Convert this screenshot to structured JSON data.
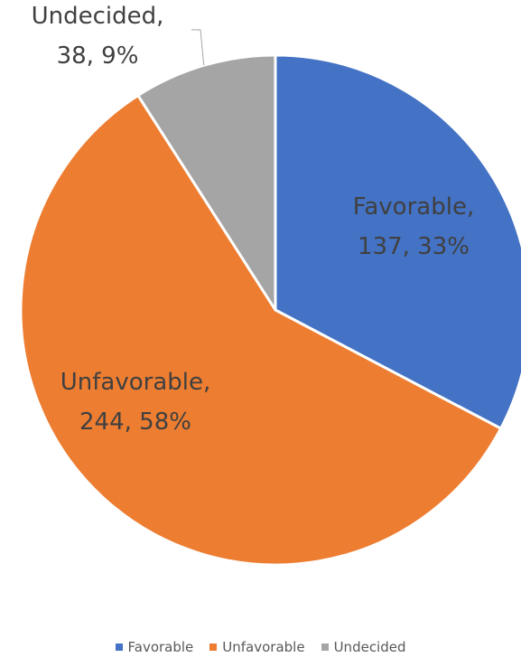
{
  "chart_data": {
    "type": "pie",
    "title": "",
    "slices": [
      {
        "label": "Favorable",
        "value": 137,
        "percent": "33%",
        "color": "#4472C4"
      },
      {
        "label": "Unfavorable",
        "value": 244,
        "percent": "58%",
        "color": "#ED7D31"
      },
      {
        "label": "Undecided",
        "value": 38,
        "percent": "9%",
        "color": "#A5A5A5"
      }
    ],
    "legend": {
      "position": "bottom",
      "items": [
        "Favorable",
        "Unfavorable",
        "Undecided"
      ]
    }
  }
}
